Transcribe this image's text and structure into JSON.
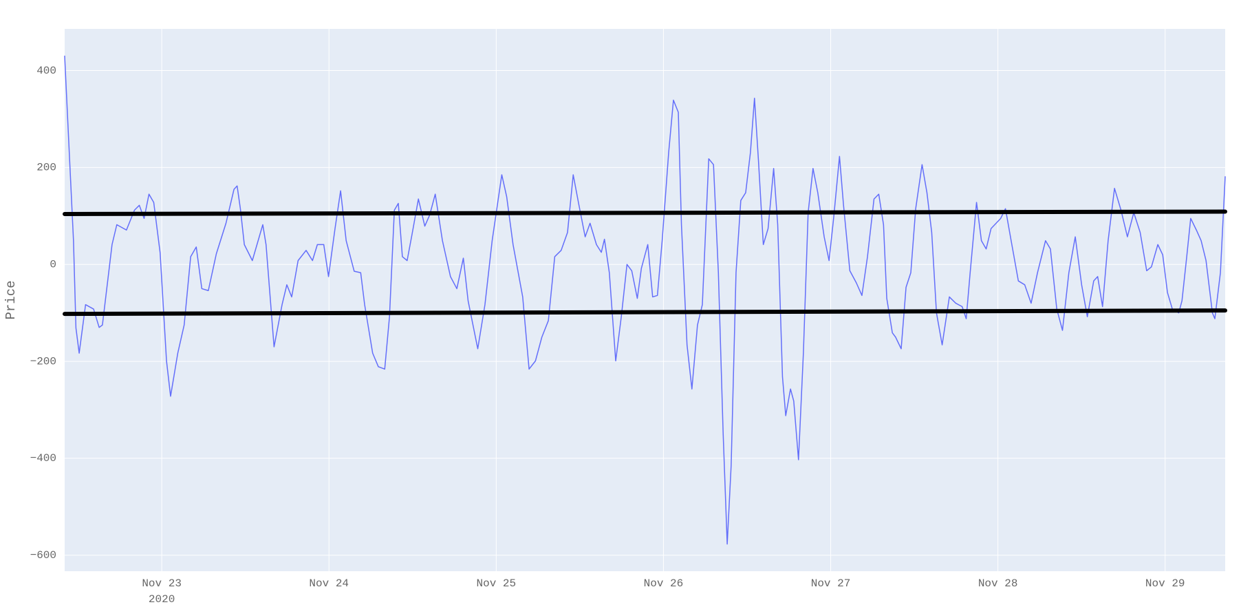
{
  "chart_data": {
    "type": "line",
    "y_label": "Price",
    "xlim": [
      "2020-11-22 10:04",
      "2020-11-29 08:37"
    ],
    "xticks": [
      {
        "value": "2020-11-23",
        "label": "Nov 23"
      },
      {
        "value": "2020-11-24",
        "label": "Nov 24"
      },
      {
        "value": "2020-11-25",
        "label": "Nov 25"
      },
      {
        "value": "2020-11-26",
        "label": "Nov 26"
      },
      {
        "value": "2020-11-27",
        "label": "Nov 27"
      },
      {
        "value": "2020-11-28",
        "label": "Nov 28"
      },
      {
        "value": "2020-11-29",
        "label": "Nov 29"
      }
    ],
    "xtick_year": "2020",
    "ylim": [
      -633,
      486
    ],
    "yticks": [
      {
        "value": -600,
        "label": "−600"
      },
      {
        "value": -400,
        "label": "−400"
      },
      {
        "value": -200,
        "label": "−200"
      },
      0,
      200,
      400
    ],
    "grid": true,
    "background": "#e5ecf6",
    "series": [
      {
        "color": "#636efa",
        "width": 1.5,
        "x": [
          "2020-11-22 10:04",
          "2020-11-22 11:20",
          "2020-11-22 11:41",
          "2020-11-22 12:09",
          "2020-11-22 13:04",
          "2020-11-22 14:13",
          "2020-11-22 15:01",
          "2020-11-22 15:29",
          "2020-11-22 16:52",
          "2020-11-22 17:33",
          "2020-11-22 18:56",
          "2020-11-22 20:05",
          "2020-11-22 20:47",
          "2020-11-22 21:28",
          "2020-11-22 22:10",
          "2020-11-22 22:51",
          "2020-11-22 23:46",
          "2020-11-23 00:41",
          "2020-11-23 01:16",
          "2020-11-23 02:18",
          "2020-11-23 03:13",
          "2020-11-23 04:09",
          "2020-11-23 04:57",
          "2020-11-23 05:45",
          "2020-11-23 06:41",
          "2020-11-23 07:50",
          "2020-11-23 09:13",
          "2020-11-23 10:22",
          "2020-11-23 10:49",
          "2020-11-23 11:17",
          "2020-11-23 11:51",
          "2020-11-23 13:00",
          "2020-11-23 14:30",
          "2020-11-23 14:58",
          "2020-11-23 16:07",
          "2020-11-23 17:16",
          "2020-11-23 17:57",
          "2020-11-23 18:39",
          "2020-11-23 19:34",
          "2020-11-23 20:43",
          "2020-11-23 21:38",
          "2020-11-23 22:20",
          "2020-11-23 23:15",
          "2020-11-23 23:56",
          "2020-11-24 00:52",
          "2020-11-24 01:40",
          "2020-11-24 02:28",
          "2020-11-24 03:37",
          "2020-11-24 04:33",
          "2020-11-24 05:07",
          "2020-11-24 06:16",
          "2020-11-24 07:05",
          "2020-11-24 08:00",
          "2020-11-24 08:41",
          "2020-11-24 09:23",
          "2020-11-24 09:57",
          "2020-11-24 10:32",
          "2020-11-24 11:13",
          "2020-11-24 11:55",
          "2020-11-24 12:50",
          "2020-11-24 13:45",
          "2020-11-24 14:27",
          "2020-11-24 15:15",
          "2020-11-24 16:17",
          "2020-11-24 17:26",
          "2020-11-24 18:21",
          "2020-11-24 19:17",
          "2020-11-24 19:58",
          "2020-11-24 21:21",
          "2020-11-24 22:23",
          "2020-11-24 23:25",
          "2020-11-25 00:48",
          "2020-11-25 01:30",
          "2020-11-25 02:25",
          "2020-11-25 03:48",
          "2020-11-25 04:43",
          "2020-11-25 05:38",
          "2020-11-25 06:33",
          "2020-11-25 07:29",
          "2020-11-25 08:24",
          "2020-11-25 09:19",
          "2020-11-25 10:14",
          "2020-11-25 11:03",
          "2020-11-25 11:51",
          "2020-11-25 12:46",
          "2020-11-25 13:28",
          "2020-11-25 14:23",
          "2020-11-25 15:05",
          "2020-11-25 15:32",
          "2020-11-25 16:14",
          "2020-11-25 17:09",
          "2020-11-25 17:57",
          "2020-11-25 18:46",
          "2020-11-25 19:27",
          "2020-11-25 20:15",
          "2020-11-25 20:50",
          "2020-11-25 21:45",
          "2020-11-25 22:27",
          "2020-11-25 23:08",
          "2020-11-25 23:49",
          "2020-11-26 00:45",
          "2020-11-26 01:26",
          "2020-11-26 02:08",
          "2020-11-26 02:35",
          "2020-11-26 03:23",
          "2020-11-26 04:05",
          "2020-11-26 04:53",
          "2020-11-26 05:35",
          "2020-11-26 06:30",
          "2020-11-26 07:11",
          "2020-11-26 07:53",
          "2020-11-26 08:34",
          "2020-11-26 09:09",
          "2020-11-26 09:43",
          "2020-11-26 10:25",
          "2020-11-26 11:06",
          "2020-11-26 11:48",
          "2020-11-26 12:29",
          "2020-11-26 13:04",
          "2020-11-26 13:38",
          "2020-11-26 14:20",
          "2020-11-26 15:01",
          "2020-11-26 15:49",
          "2020-11-26 16:24",
          "2020-11-26 17:05",
          "2020-11-26 17:33",
          "2020-11-26 18:14",
          "2020-11-26 18:42",
          "2020-11-26 19:23",
          "2020-11-26 20:05",
          "2020-11-26 20:46",
          "2020-11-26 21:28",
          "2020-11-26 22:09",
          "2020-11-26 23:04",
          "2020-11-26 23:46",
          "2020-11-27 00:27",
          "2020-11-27 01:16",
          "2020-11-27 01:50",
          "2020-11-27 02:45",
          "2020-11-27 03:41",
          "2020-11-27 04:29",
          "2020-11-27 05:17",
          "2020-11-27 06:13",
          "2020-11-27 06:54",
          "2020-11-27 07:35",
          "2020-11-27 08:03",
          "2020-11-27 08:51",
          "2020-11-27 09:19",
          "2020-11-27 10:07",
          "2020-11-27 10:49",
          "2020-11-27 11:30",
          "2020-11-27 12:12",
          "2020-11-27 13:07",
          "2020-11-27 13:49",
          "2020-11-27 14:30",
          "2020-11-27 15:11",
          "2020-11-27 16:00",
          "2020-11-27 17:02",
          "2020-11-27 17:57",
          "2020-11-27 18:52",
          "2020-11-27 19:27",
          "2020-11-27 20:01",
          "2020-11-27 20:56",
          "2020-11-27 21:38",
          "2020-11-27 22:19",
          "2020-11-27 23:01",
          "2020-11-28 00:24",
          "2020-11-28 01:05",
          "2020-11-28 02:00",
          "2020-11-28 02:56",
          "2020-11-28 03:51",
          "2020-11-28 04:46",
          "2020-11-28 05:41",
          "2020-11-28 06:50",
          "2020-11-28 07:32",
          "2020-11-28 08:27",
          "2020-11-28 09:16",
          "2020-11-28 10:11",
          "2020-11-28 11:06",
          "2020-11-28 12:01",
          "2020-11-28 12:50",
          "2020-11-28 13:45",
          "2020-11-28 14:19",
          "2020-11-28 15:01",
          "2020-11-28 15:49",
          "2020-11-28 16:44",
          "2020-11-28 17:40",
          "2020-11-28 18:35",
          "2020-11-28 19:30",
          "2020-11-28 20:25",
          "2020-11-28 21:21",
          "2020-11-28 22:02",
          "2020-11-28 22:57",
          "2020-11-28 23:39",
          "2020-11-29 00:20",
          "2020-11-29 01:02",
          "2020-11-29 01:57",
          "2020-11-29 02:25",
          "2020-11-29 03:06",
          "2020-11-29 03:40",
          "2020-11-29 04:29",
          "2020-11-29 05:10",
          "2020-11-29 05:52",
          "2020-11-29 06:47",
          "2020-11-29 07:08",
          "2020-11-29 07:56",
          "2020-11-29 08:37"
        ],
        "values": [
          430,
          49,
          -131,
          -183,
          -83,
          -92,
          -130,
          -125,
          41,
          82,
          71,
          112,
          122,
          95,
          145,
          128,
          24,
          -199,
          -272,
          -183,
          -125,
          16,
          36,
          -50,
          -54,
          22,
          85,
          155,
          162,
          115,
          41,
          8,
          82,
          41,
          -170,
          -83,
          -42,
          -67,
          8,
          29,
          8,
          41,
          41,
          -25,
          74,
          152,
          49,
          -14,
          -17,
          -83,
          -183,
          -211,
          -216,
          -108,
          112,
          126,
          16,
          8,
          62,
          135,
          79,
          102,
          145,
          49,
          -25,
          -50,
          13,
          -75,
          -174,
          -83,
          49,
          185,
          140,
          41,
          -67,
          -216,
          -199,
          -150,
          -116,
          16,
          29,
          66,
          185,
          124,
          57,
          85,
          41,
          25,
          52,
          -17,
          -199,
          -108,
          0,
          -13,
          -70,
          -8,
          41,
          -67,
          -64,
          49,
          231,
          339,
          314,
          82,
          -166,
          -257,
          -125,
          -83,
          218,
          206,
          -17,
          -348,
          -577,
          -415,
          -17,
          132,
          148,
          231,
          343,
          215,
          41,
          74,
          198,
          82,
          -232,
          -312,
          -257,
          -282,
          -403,
          -183,
          107,
          198,
          148,
          57,
          8,
          99,
          223,
          124,
          -13,
          -38,
          -64,
          16,
          135,
          145,
          82,
          -70,
          -141,
          -150,
          -174,
          -47,
          -17,
          115,
          206,
          148,
          66,
          -100,
          -166,
          -67,
          -80,
          -87,
          -112,
          -17,
          128,
          49,
          32,
          74,
          95,
          115,
          41,
          -34,
          -42,
          -80,
          -17,
          49,
          32,
          -92,
          -136,
          -17,
          57,
          -42,
          -108,
          -34,
          -25,
          -87,
          49,
          157,
          112,
          57,
          107,
          66,
          -13,
          -5,
          41,
          20,
          -58,
          -92,
          -100,
          -75,
          16,
          95,
          71,
          49,
          8,
          -100,
          -112,
          -17,
          181
        ]
      },
      {
        "color": "#000000",
        "width": 6,
        "x": [
          "2020-11-22 10:04",
          "2020-11-29 08:37"
        ],
        "values": [
          104,
          109
        ]
      },
      {
        "color": "#000000",
        "width": 6,
        "x": [
          "2020-11-22 10:04",
          "2020-11-29 08:37"
        ],
        "values": [
          -102,
          -95
        ]
      }
    ]
  }
}
